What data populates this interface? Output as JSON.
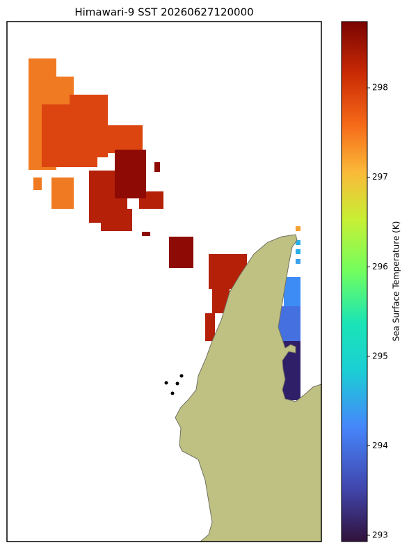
{
  "title": "Himawari-9 SST 20260627120000",
  "colorbar": {
    "label": "Sea Surface Temperature (K)",
    "lim": [
      292.93,
      298.74
    ],
    "ticks": [
      293,
      294,
      295,
      296,
      297,
      298
    ]
  }
}
